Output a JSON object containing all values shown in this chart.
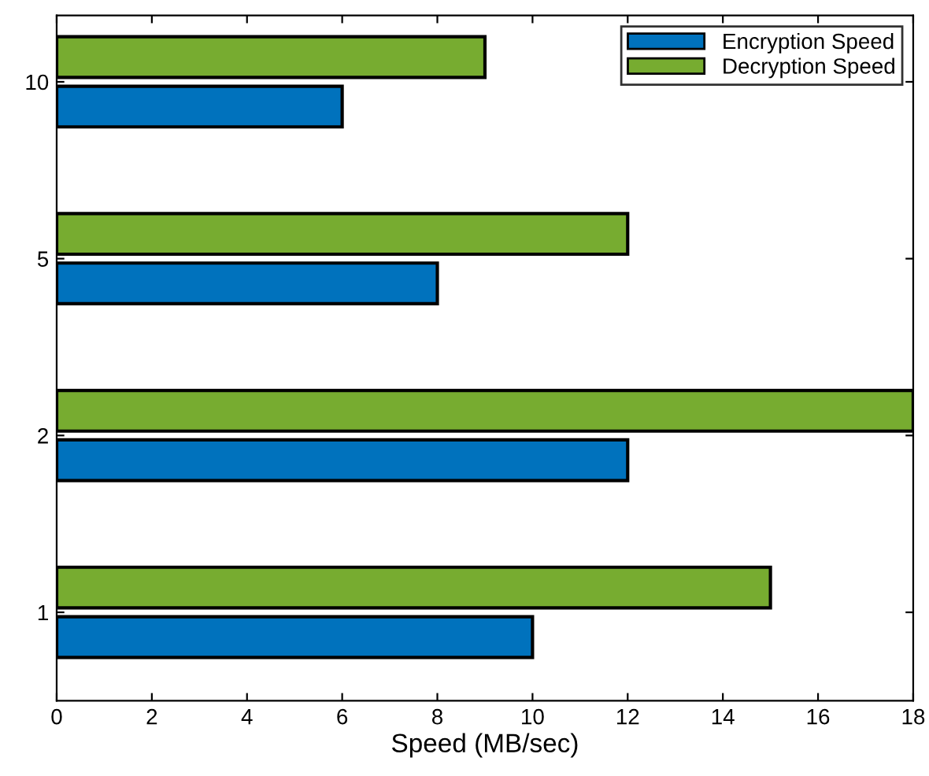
{
  "chart_data": {
    "type": "bar",
    "orientation": "horizontal",
    "xlabel": "Speed (MB/sec)",
    "categories": [
      "10",
      "5",
      "2",
      "1"
    ],
    "series": [
      {
        "name": "Encryption Speed",
        "color": "#0072bd",
        "values": [
          6,
          8,
          12,
          10
        ]
      },
      {
        "name": "Decryption Speed",
        "color": "#77ac30",
        "values": [
          9,
          12,
          18,
          15
        ]
      }
    ],
    "xlim": [
      0,
      18
    ],
    "xticks": [
      0,
      2,
      4,
      6,
      8,
      10,
      12,
      14,
      16,
      18
    ],
    "legend": "top right",
    "grid": false
  }
}
